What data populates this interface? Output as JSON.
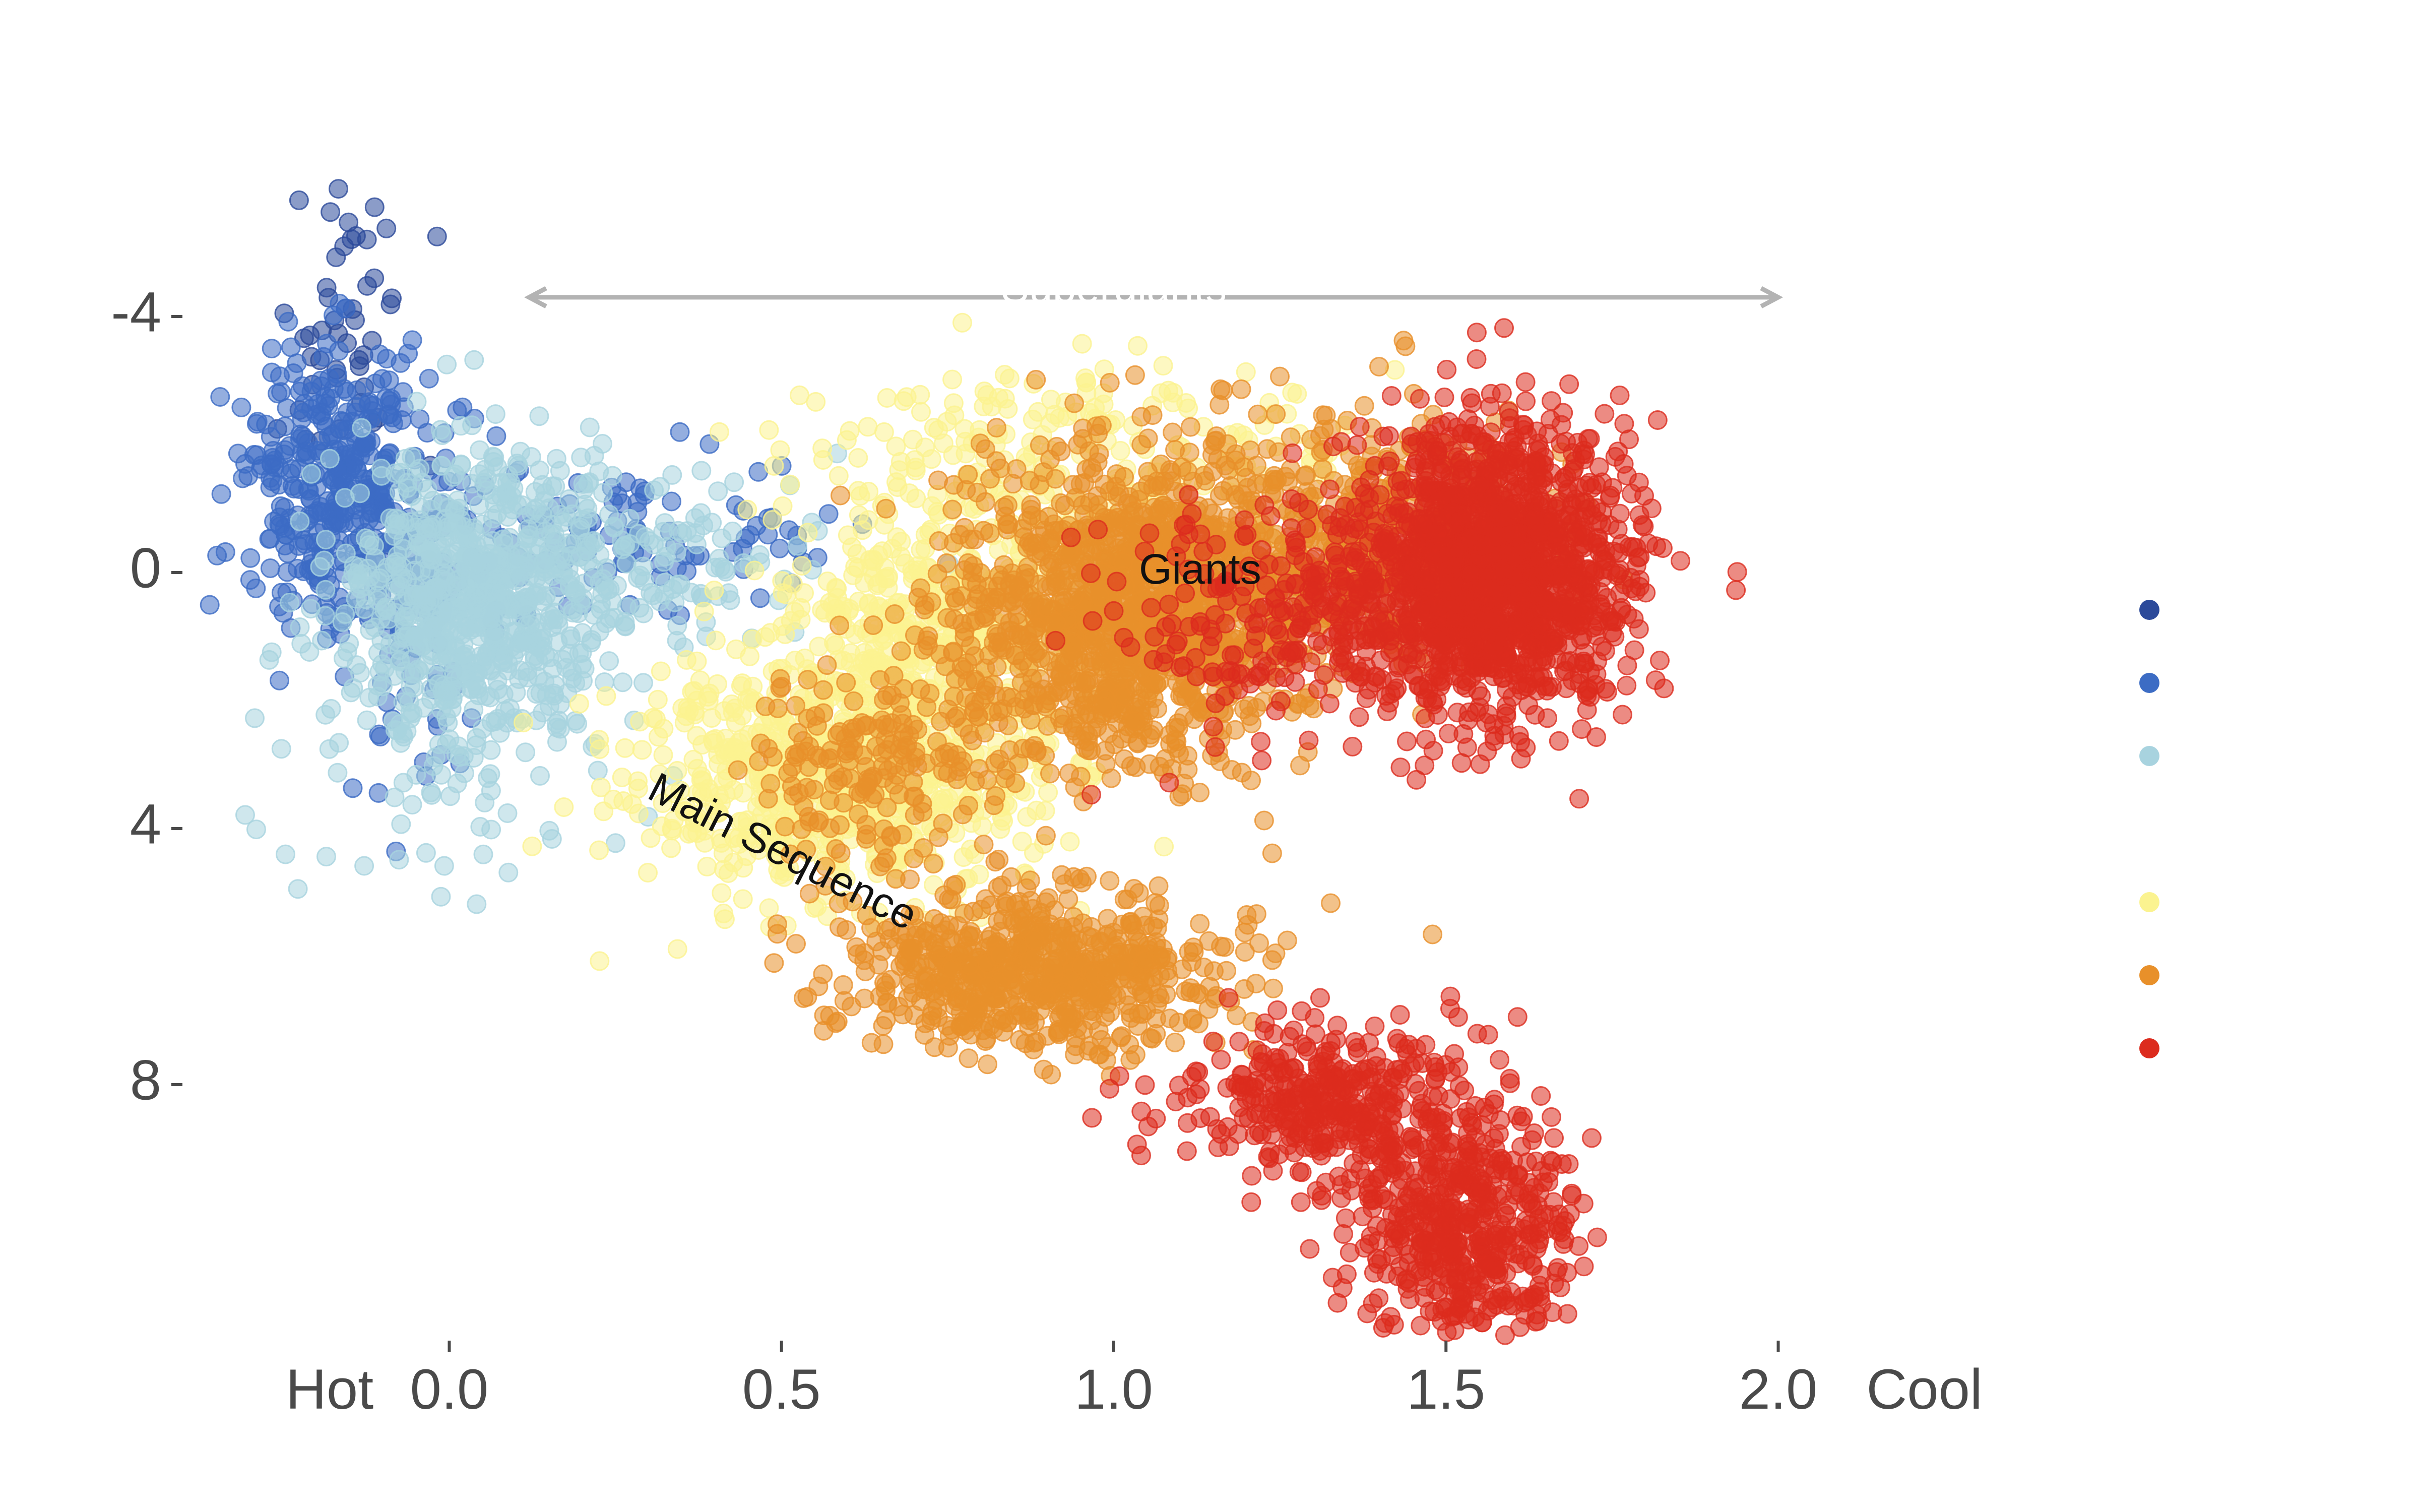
{
  "chart_data": {
    "type": "scatter",
    "title": "",
    "xlabel": "",
    "ylabel": "",
    "xlim": [
      -0.35,
      2.35
    ],
    "ylim": [
      12.0,
      -8.0
    ],
    "y_inverted": true,
    "grid": false,
    "legend": "right",
    "x_ticks": [
      {
        "value": 0.0,
        "label": "0.0"
      },
      {
        "value": 0.5,
        "label": "0.5"
      },
      {
        "value": 1.0,
        "label": "1.0"
      },
      {
        "value": 1.5,
        "label": "1.5"
      },
      {
        "value": 2.0,
        "label": "2.0"
      }
    ],
    "x_end_labels": {
      "left": "Hot",
      "right": "Cool"
    },
    "y_ticks": [
      {
        "value": -4,
        "label": "-4"
      },
      {
        "value": 0,
        "label": "0"
      },
      {
        "value": 4,
        "label": "4"
      },
      {
        "value": 8,
        "label": "8"
      }
    ],
    "annotations": [
      {
        "text": "Giants",
        "x": 1.13,
        "y": 0.0,
        "angle": 0,
        "color": "#111111"
      },
      {
        "text": "Main Sequence",
        "x": 0.5,
        "y": 4.4,
        "angle": 27,
        "color": "#111111"
      },
      {
        "text": "Supergiants",
        "x": 1.0,
        "y": -4.4,
        "angle": 0,
        "color": "#ffffff"
      }
    ],
    "arrow": {
      "x0": 0.12,
      "x1": 2.0,
      "y": -4.3,
      "color": "#b3b3b3",
      "both_ends": true
    },
    "series": [
      {
        "color": "#2c4a9a",
        "clusters": [
          {
            "cx": -0.15,
            "cy": -4.0,
            "sx": 0.06,
            "sy": 1.2,
            "n": 50
          }
        ]
      },
      {
        "color": "#3c6cc4",
        "clusters": [
          {
            "cx": -0.17,
            "cy": -1.3,
            "sx": 0.07,
            "sy": 1.1,
            "n": 380
          },
          {
            "cx": -0.06,
            "cy": 0.5,
            "sx": 0.05,
            "sy": 1.3,
            "n": 90
          },
          {
            "cx": 0.25,
            "cy": -0.6,
            "sx": 0.18,
            "sy": 0.6,
            "n": 120
          }
        ]
      },
      {
        "color": "#a8d3df",
        "clusters": [
          {
            "cx": 0.03,
            "cy": 0.4,
            "sx": 0.1,
            "sy": 1.1,
            "n": 700
          },
          {
            "cx": 0.25,
            "cy": -0.2,
            "sx": 0.14,
            "sy": 0.8,
            "n": 180
          },
          {
            "cx": 0.0,
            "cy": 3.5,
            "sx": 0.15,
            "sy": 1.0,
            "n": 50
          }
        ]
      },
      {
        "color": "#fbf390",
        "clusters": [
          {
            "cx": 0.58,
            "cy": 3.2,
            "sx": 0.15,
            "sy": 0.9,
            "n": 700
          },
          {
            "cx": 0.72,
            "cy": 1.0,
            "sx": 0.12,
            "sy": 1.0,
            "n": 450
          },
          {
            "cx": 0.95,
            "cy": -1.6,
            "sx": 0.2,
            "sy": 0.9,
            "n": 250
          }
        ]
      },
      {
        "color": "#e8902a",
        "clusters": [
          {
            "cx": 1.02,
            "cy": 0.6,
            "sx": 0.13,
            "sy": 1.2,
            "n": 1300
          },
          {
            "cx": 1.35,
            "cy": -0.5,
            "sx": 0.14,
            "sy": 1.0,
            "n": 500
          },
          {
            "cx": 0.88,
            "cy": 6.2,
            "sx": 0.14,
            "sy": 0.6,
            "n": 700
          },
          {
            "cx": 0.65,
            "cy": 3.0,
            "sx": 0.1,
            "sy": 0.8,
            "n": 200
          }
        ]
      },
      {
        "color": "#dc2c1e",
        "clusters": [
          {
            "cx": 1.58,
            "cy": -0.1,
            "sx": 0.1,
            "sy": 1.1,
            "n": 1400
          },
          {
            "cx": 1.32,
            "cy": 0.6,
            "sx": 0.15,
            "sy": 0.9,
            "n": 350
          },
          {
            "cx": 1.33,
            "cy": 8.3,
            "sx": 0.12,
            "sy": 0.6,
            "n": 400
          },
          {
            "cx": 1.53,
            "cy": 10.4,
            "sx": 0.08,
            "sy": 0.9,
            "n": 500
          }
        ]
      }
    ]
  }
}
